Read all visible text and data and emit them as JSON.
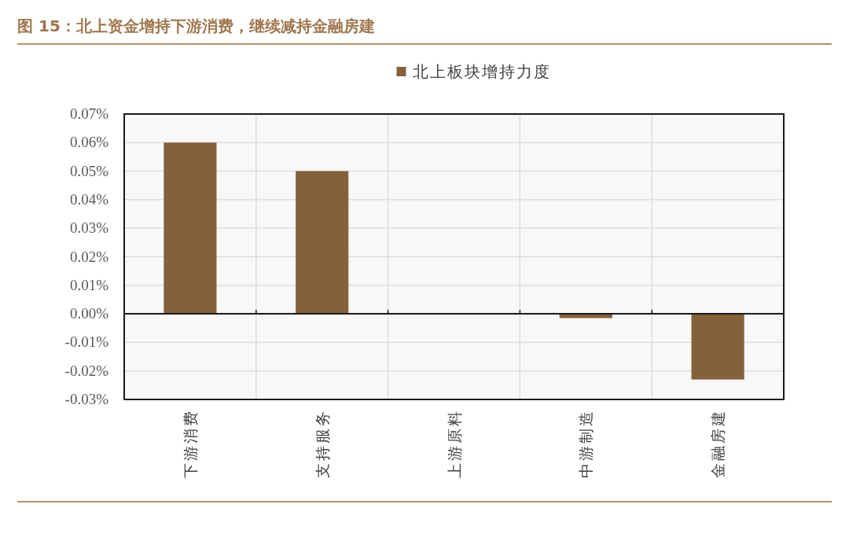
{
  "chart_data": {
    "type": "bar",
    "title": "图 15：北上资金增持下游消费，继续减持金融房建",
    "categories": [
      "下游消费",
      "支持服务",
      "上游原料",
      "中游制造",
      "金融房建"
    ],
    "series": [
      {
        "name": "北上板块增持力度",
        "color": "#84613a",
        "values": [
          0.06,
          0.05,
          0,
          -0.0015,
          -0.023
        ]
      }
    ],
    "ylim": [
      -0.03,
      0.07
    ],
    "yticks": [
      {
        "value": -0.03,
        "label": "-0.03%"
      },
      {
        "value": -0.02,
        "label": "-0.02%"
      },
      {
        "value": -0.01,
        "label": "-0.01%"
      },
      {
        "value": 0,
        "label": "0.00%"
      },
      {
        "value": 0.01,
        "label": "0.01%"
      },
      {
        "value": 0.02,
        "label": "0.02%"
      },
      {
        "value": 0.03,
        "label": "0.03%"
      },
      {
        "value": 0.04,
        "label": "0.04%"
      },
      {
        "value": 0.05,
        "label": "0.05%"
      },
      {
        "value": 0.06,
        "label": "0.06%"
      },
      {
        "value": 0.07,
        "label": "0.07%"
      }
    ],
    "grid": true,
    "legend": "top"
  }
}
